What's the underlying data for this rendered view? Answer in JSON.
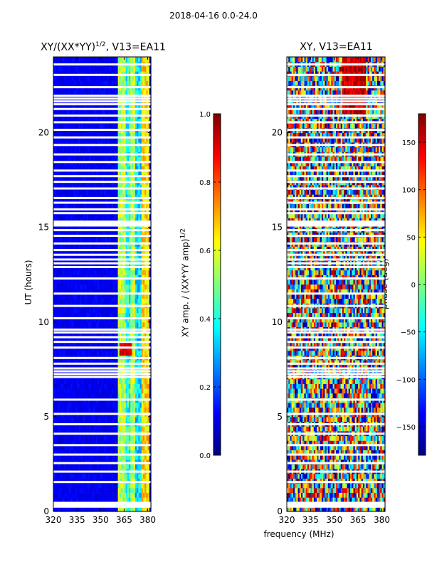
{
  "suptitle": "2018-04-16 0.0-24.0",
  "colors": {
    "jet_low": "#00007f",
    "jet_mid": "#7fff7f",
    "jet_high": "#7f0000",
    "gap": "#ffffff",
    "axis": "#000000"
  },
  "chart_data": [
    {
      "type": "heatmap",
      "title_main": "XY/(XX*YY)",
      "title_sup": "1/2",
      "title_tail": ", V13=EA11",
      "xlabel": "",
      "ylabel": "UT (hours)",
      "xlim": [
        320,
        382
      ],
      "ylim": [
        0,
        24
      ],
      "x_ticks": [
        320,
        335,
        350,
        365,
        380
      ],
      "y_ticks": [
        0,
        5,
        10,
        15,
        20
      ],
      "colorbar": {
        "label_main": "XY amp. / (XX*YY amp)",
        "label_sup": "1/2",
        "range": [
          0.0,
          1.0
        ],
        "ticks": [
          "0.0",
          "0.2",
          "0.4",
          "0.6",
          "0.8",
          "1.0"
        ]
      },
      "description_bands_mhz": [
        [
          361,
          366
        ],
        [
          366,
          369
        ],
        [
          369,
          372
        ],
        [
          372,
          376
        ],
        [
          376,
          381
        ]
      ],
      "band_levels": [
        0.45,
        0.3,
        0.45,
        0.25,
        0.55
      ],
      "background_level": 0.08,
      "high_event_hours": [
        8.2,
        9.0
      ]
    },
    {
      "type": "heatmap",
      "title": "XY, V13=EA11",
      "xlabel": "frequency (MHz)",
      "ylabel": "",
      "xlim": [
        320,
        382
      ],
      "ylim": [
        0,
        24
      ],
      "x_ticks": [
        320,
        335,
        350,
        365,
        380
      ],
      "y_ticks": [
        0,
        5,
        10,
        15,
        20
      ],
      "colorbar": {
        "label": "phase (deg)",
        "range": [
          -180,
          180
        ],
        "ticks": [
          "150",
          "100",
          "50",
          "0",
          "−50",
          "−100",
          "−150"
        ]
      }
    }
  ],
  "gap_rows_hours": [
    0.25,
    0.35,
    0.45,
    1.55,
    2.1,
    2.55,
    3.0,
    3.5,
    4.1,
    4.6,
    5.15,
    5.9,
    7.1,
    7.25,
    7.4,
    7.55,
    7.8,
    8.1,
    8.65,
    8.95,
    9.2,
    9.45,
    9.6,
    10.2,
    10.85,
    11.5,
    12.3,
    12.9,
    13.1,
    13.3,
    13.55,
    13.8,
    14.15,
    14.55,
    14.85,
    15.1,
    15.2,
    15.3,
    15.75,
    15.95,
    16.3,
    16.55,
    17.05,
    17.4,
    17.7,
    18.0,
    18.45,
    18.85,
    19.35,
    19.75,
    20.15,
    20.55,
    20.9,
    21.25,
    21.5,
    21.65,
    21.8,
    21.95,
    22.4,
    23.05,
    23.6
  ]
}
